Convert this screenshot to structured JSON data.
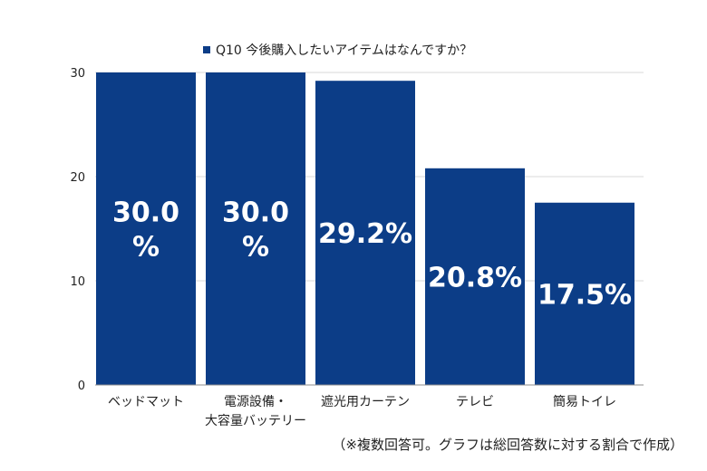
{
  "chart_data": {
    "type": "bar",
    "title": "Q10 今後購入したいアイテムはなんですか？",
    "legend": [
      "Q10 今後購入したいアイテムはなんですか？"
    ],
    "legend_position": "top-center",
    "categories": [
      [
        "ベッドマット"
      ],
      [
        "電源設備・",
        "大容量バッテリー"
      ],
      [
        "遮光用カーテン"
      ],
      [
        "テレビ"
      ],
      [
        "簡易トイレ"
      ]
    ],
    "values": [
      30.0,
      30.0,
      29.2,
      20.8,
      17.5
    ],
    "data_labels": [
      [
        "30.0",
        "%"
      ],
      [
        "30.0",
        "%"
      ],
      [
        "29.2%"
      ],
      [
        "20.8%"
      ],
      [
        "17.5%"
      ]
    ],
    "yticks": [
      "0",
      "10",
      "20",
      "30"
    ],
    "ylim": [
      0,
      30
    ],
    "grid": true,
    "xlabel": "",
    "ylabel": "",
    "colors": {
      "bar": "#0c3d87",
      "label": "#ffffff",
      "grid": "#d9d9d9",
      "axis": "#8c8c8c",
      "text": "#222222"
    }
  },
  "note": "（※複数回答可。グラフは総回答数に対する割合で作成）"
}
